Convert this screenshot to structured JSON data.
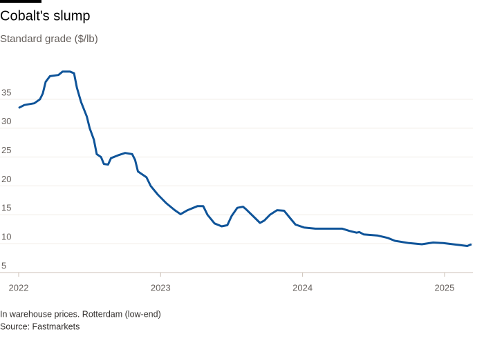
{
  "chart_data": {
    "type": "line",
    "title": "Cobalt's slump",
    "subtitle": "Standard grade ($/lb)",
    "note": "In warehouse prices. Rotterdam (low-end)",
    "source": "Source: Fastmarkets",
    "color": "#0f5499",
    "grid": true,
    "xlim": [
      2022,
      2025.2
    ],
    "xticks": [
      2022,
      2023,
      2024,
      2025
    ],
    "ylim": [
      5,
      40
    ],
    "yticks": [
      5,
      10,
      15,
      20,
      25,
      30,
      35
    ],
    "x": [
      2022.0,
      2022.04,
      2022.11,
      2022.15,
      2022.17,
      2022.19,
      2022.22,
      2022.28,
      2022.31,
      2022.36,
      2022.39,
      2022.41,
      2022.44,
      2022.48,
      2022.5,
      2022.53,
      2022.55,
      2022.58,
      2022.6,
      2022.63,
      2022.65,
      2022.7,
      2022.75,
      2022.8,
      2022.82,
      2022.84,
      2022.9,
      2022.93,
      2022.98,
      2023.04,
      2023.1,
      2023.14,
      2023.19,
      2023.26,
      2023.3,
      2023.33,
      2023.38,
      2023.43,
      2023.47,
      2023.5,
      2023.54,
      2023.58,
      2023.6,
      2023.65,
      2023.7,
      2023.73,
      2023.77,
      2023.82,
      2023.87,
      2023.91,
      2023.95,
      2024.01,
      2024.09,
      2024.21,
      2024.28,
      2024.33,
      2024.38,
      2024.4,
      2024.43,
      2024.53,
      2024.6,
      2024.65,
      2024.75,
      2024.84,
      2024.92,
      2024.99,
      2025.09,
      2025.16,
      2025.19
    ],
    "values": [
      33.5,
      34,
      34.3,
      35,
      36,
      38,
      39,
      39.2,
      39.8,
      39.8,
      39.5,
      37,
      34.5,
      32,
      30,
      28,
      25.5,
      25,
      23.8,
      23.7,
      24.8,
      25.3,
      25.7,
      25.5,
      24.5,
      22.5,
      21.5,
      20,
      18.5,
      17,
      15.8,
      15.1,
      15.8,
      16.5,
      16.5,
      15,
      13.5,
      13,
      13.2,
      14.8,
      16.2,
      16.4,
      16,
      14.8,
      13.6,
      14,
      15,
      15.8,
      15.7,
      14.5,
      13.3,
      12.8,
      12.6,
      12.6,
      12.6,
      12.2,
      11.9,
      12,
      11.6,
      11.4,
      11,
      10.5,
      10.1,
      9.9,
      10.2,
      10.1,
      9.8,
      9.6,
      9.9
    ]
  }
}
